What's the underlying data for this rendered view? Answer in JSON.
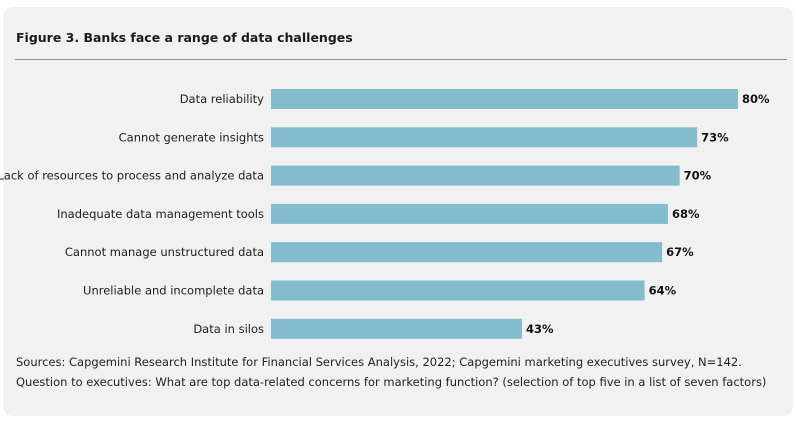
{
  "chart_data": {
    "type": "bar",
    "orientation": "horizontal",
    "title": "Figure 3. Banks face a range of data challenges",
    "categories": [
      "Data reliability",
      "Cannot generate insights",
      "Lack of resources to process and analyze data",
      "Inadequate data management tools",
      "Cannot manage unstructured data",
      "Unreliable and incomplete data",
      "Data in silos"
    ],
    "values": [
      80,
      73,
      70,
      68,
      67,
      64,
      43
    ],
    "value_labels": [
      "80%",
      "73%",
      "70%",
      "68%",
      "67%",
      "64%",
      "43%"
    ],
    "unit": "%",
    "xlim": [
      0,
      80
    ],
    "grid": false,
    "bar_color": "#82bccd"
  },
  "footnotes": {
    "source": "Sources: Capgemini Research Institute for Financial Services Analysis, 2022; Capgemini marketing executives survey, N=142.",
    "question": "Question to executives: What are top data-related concerns for marketing function? (selection of top five in a list of seven factors)"
  },
  "colors": {
    "card_background": "#f1f1f1",
    "bar": "#82bccd",
    "rule": "#8a8a8a"
  }
}
